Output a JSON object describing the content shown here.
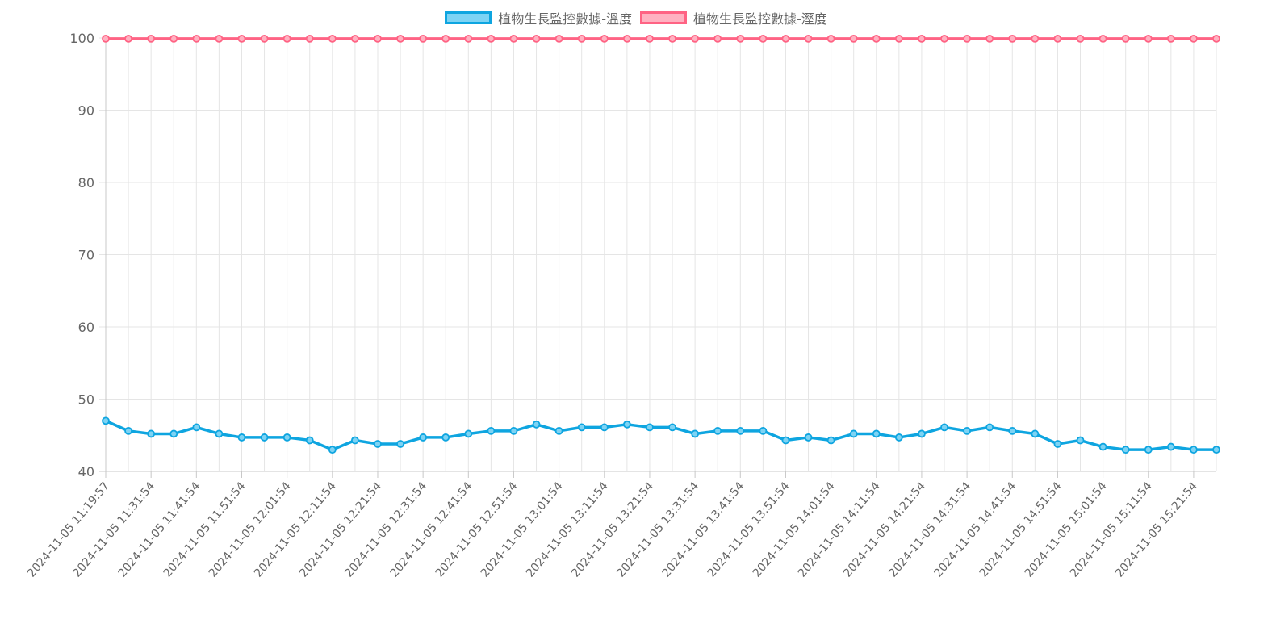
{
  "chart_data": {
    "type": "line",
    "ylim": [
      40,
      100
    ],
    "y_ticks": [
      40,
      50,
      60,
      70,
      80,
      90,
      100
    ],
    "grid": true,
    "legend_position": "top",
    "x_tick_labels": [
      "2024-11-05 11:19:57",
      "2024-11-05 11:31:54",
      "2024-11-05 11:41:54",
      "2024-11-05 11:51:54",
      "2024-11-05 12:01:54",
      "2024-11-05 12:11:54",
      "2024-11-05 12:21:54",
      "2024-11-05 12:31:54",
      "2024-11-05 12:41:54",
      "2024-11-05 12:51:54",
      "2024-11-05 13:01:54",
      "2024-11-05 13:11:54",
      "2024-11-05 13:21:54",
      "2024-11-05 13:31:54",
      "2024-11-05 13:41:54",
      "2024-11-05 13:51:54",
      "2024-11-05 14:01:54",
      "2024-11-05 14:11:54",
      "2024-11-05 14:21:54",
      "2024-11-05 14:31:54",
      "2024-11-05 14:41:54",
      "2024-11-05 14:51:54",
      "2024-11-05 15:01:54",
      "2024-11-05 15:11:54",
      "2024-11-05 15:21:54"
    ],
    "series": [
      {
        "name": "植物生長監控數據-溫度",
        "color": "#0ea5e0",
        "fill": "#7dd3f4",
        "values": [
          47,
          45.6,
          45.2,
          45.2,
          46.1,
          45.2,
          44.7,
          44.7,
          44.7,
          44.3,
          43,
          44.3,
          43.8,
          43.8,
          44.7,
          44.7,
          45.2,
          45.6,
          45.6,
          46.5,
          45.6,
          46.1,
          46.1,
          46.5,
          46.1,
          46.1,
          45.2,
          45.6,
          45.6,
          45.6,
          44.3,
          44.7,
          44.3,
          45.2,
          45.2,
          44.7,
          45.2,
          46.1,
          45.6,
          46.1,
          45.6,
          45.2,
          43.8,
          44.3,
          43.4,
          43,
          43,
          43.4,
          43,
          43
        ]
      },
      {
        "name": "植物生長監控數據-溼度",
        "color": "#ff6384",
        "fill": "#ffb1c1",
        "values": [
          99.9,
          99.9,
          99.9,
          99.9,
          99.9,
          99.9,
          99.9,
          99.9,
          99.9,
          99.9,
          99.9,
          99.9,
          99.9,
          99.9,
          99.9,
          99.9,
          99.9,
          99.9,
          99.9,
          99.9,
          99.9,
          99.9,
          99.9,
          99.9,
          99.9,
          99.9,
          99.9,
          99.9,
          99.9,
          99.9,
          99.9,
          99.9,
          99.9,
          99.9,
          99.9,
          99.9,
          99.9,
          99.9,
          99.9,
          99.9,
          99.9,
          99.9,
          99.9,
          99.9,
          99.9,
          99.9,
          99.9,
          99.9,
          99.9,
          99.9
        ]
      }
    ]
  }
}
